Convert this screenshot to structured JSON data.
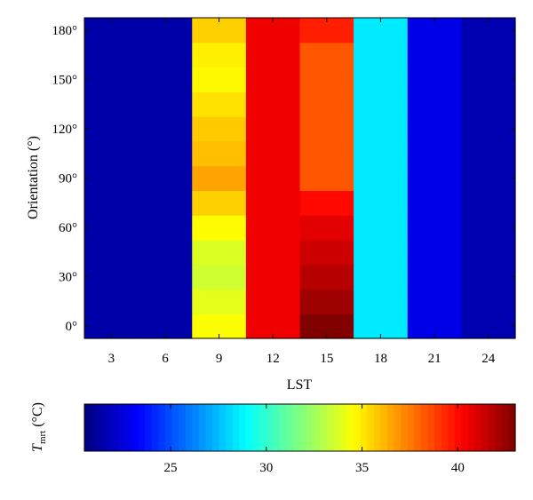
{
  "chart_data": [
    {
      "type": "heatmap",
      "title": "",
      "xlabel": "LST",
      "ylabel": "Orientation (°)",
      "x_ticks": [
        "3",
        "6",
        "9",
        "12",
        "15",
        "18",
        "21",
        "24"
      ],
      "y_ticks": [
        "0°",
        "30°",
        "60°",
        "90°",
        "120°",
        "150°",
        "180°"
      ],
      "x_tick_values": [
        3,
        6,
        9,
        12,
        15,
        18,
        21,
        24
      ],
      "y_tick_values": [
        0,
        30,
        60,
        90,
        120,
        150,
        180
      ],
      "xlim": [
        1.5,
        25.5
      ],
      "ylim": [
        -7.5,
        187.5
      ],
      "x": [
        3,
        6,
        9,
        12,
        15,
        18,
        21,
        24
      ],
      "y": [
        0,
        15,
        30,
        45,
        60,
        75,
        90,
        105,
        120,
        135,
        150,
        165,
        180
      ],
      "clim": [
        20.5,
        43
      ],
      "colormap": "jet",
      "z": [
        [
          21.4,
          21.4,
          34.5,
          40.5,
          43.0,
          28.5,
          22.8,
          21.6
        ],
        [
          21.4,
          21.4,
          34.0,
          40.5,
          42.3,
          28.5,
          22.8,
          21.6
        ],
        [
          21.4,
          21.4,
          33.5,
          40.5,
          41.8,
          28.5,
          22.8,
          21.6
        ],
        [
          21.4,
          21.4,
          33.8,
          40.5,
          41.3,
          28.5,
          22.8,
          21.6
        ],
        [
          21.4,
          21.4,
          34.6,
          40.5,
          40.8,
          28.5,
          22.8,
          21.6
        ],
        [
          21.4,
          21.4,
          35.6,
          40.5,
          40.0,
          28.5,
          22.8,
          21.6
        ],
        [
          21.4,
          21.4,
          36.6,
          40.5,
          38.3,
          28.5,
          22.8,
          21.6
        ],
        [
          21.4,
          21.4,
          36.0,
          40.5,
          38.3,
          28.5,
          22.8,
          21.6
        ],
        [
          21.4,
          21.4,
          35.7,
          40.5,
          38.3,
          28.5,
          22.8,
          21.6
        ],
        [
          21.4,
          21.4,
          35.2,
          40.5,
          38.3,
          28.5,
          22.8,
          21.6
        ],
        [
          21.4,
          21.4,
          34.7,
          40.5,
          38.3,
          28.5,
          22.8,
          21.6
        ],
        [
          21.4,
          21.4,
          34.9,
          40.5,
          38.3,
          28.5,
          22.8,
          21.6
        ],
        [
          21.4,
          21.4,
          35.6,
          40.5,
          39.5,
          28.5,
          22.8,
          21.6
        ]
      ]
    },
    {
      "type": "colorbar",
      "label_main": "T",
      "label_sub": "mrt",
      "label_unit": " (°C)",
      "range": [
        20.5,
        43
      ],
      "ticks": [
        "25",
        "30",
        "35",
        "40"
      ],
      "tick_values": [
        25,
        30,
        35,
        40
      ],
      "colormap": "jet"
    }
  ]
}
